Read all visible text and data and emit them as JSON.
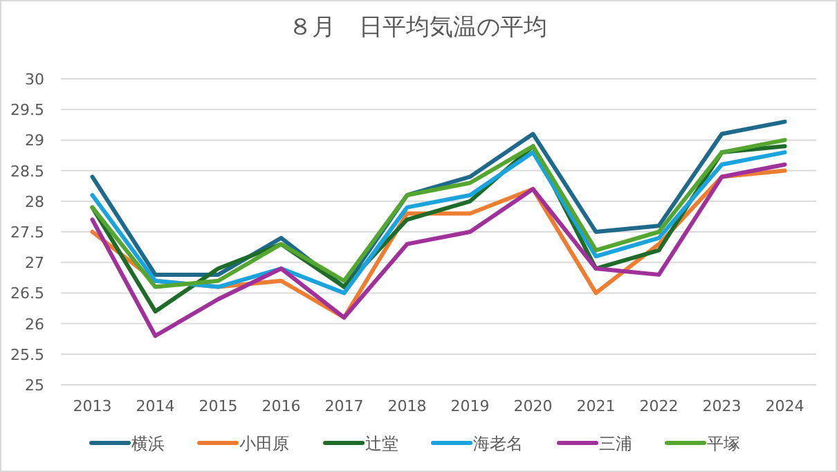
{
  "chart_data": {
    "type": "line",
    "title": "８月　日平均気温の平均",
    "categories": [
      "2013",
      "2014",
      "2015",
      "2016",
      "2017",
      "2018",
      "2019",
      "2020",
      "2021",
      "2022",
      "2023",
      "2024"
    ],
    "series": [
      {
        "name": "横浜",
        "color": "#1f6a8a",
        "values": [
          28.4,
          26.8,
          26.8,
          27.4,
          26.6,
          28.1,
          28.4,
          29.1,
          27.5,
          27.6,
          29.1,
          29.3
        ]
      },
      {
        "name": "小田原",
        "color": "#ed7d31",
        "values": [
          27.5,
          26.7,
          26.6,
          26.7,
          26.1,
          27.8,
          27.8,
          28.2,
          26.5,
          27.3,
          28.4,
          28.5
        ]
      },
      {
        "name": "辻堂",
        "color": "#1e6b2a",
        "values": [
          27.9,
          26.2,
          26.9,
          27.3,
          26.6,
          27.7,
          28.0,
          28.9,
          26.9,
          27.2,
          28.8,
          28.9
        ]
      },
      {
        "name": "海老名",
        "color": "#1aa3dc",
        "values": [
          28.1,
          26.7,
          26.6,
          26.9,
          26.5,
          27.9,
          28.1,
          28.8,
          27.1,
          27.4,
          28.6,
          28.8
        ]
      },
      {
        "name": "三浦",
        "color": "#a0309a",
        "values": [
          27.7,
          25.8,
          26.4,
          26.9,
          26.1,
          27.3,
          27.5,
          28.2,
          26.9,
          26.8,
          28.4,
          28.6
        ]
      },
      {
        "name": "平塚",
        "color": "#55a630",
        "values": [
          27.9,
          26.6,
          26.7,
          27.3,
          26.7,
          28.1,
          28.3,
          28.9,
          27.2,
          27.5,
          28.8,
          29.0
        ]
      }
    ],
    "ylim": [
      25,
      30
    ],
    "yticks": [
      25,
      25.5,
      26,
      26.5,
      27,
      27.5,
      28,
      28.5,
      29,
      29.5,
      30
    ],
    "grid": "y",
    "legend": "bottom",
    "marker": "none",
    "line_style": "solid"
  }
}
